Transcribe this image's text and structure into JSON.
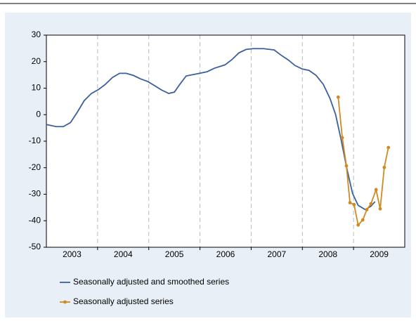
{
  "chart_data": {
    "type": "line",
    "categories": [
      "2003",
      "2004",
      "2005",
      "2006",
      "2007",
      "2008",
      "2009"
    ],
    "xlim": [
      2003,
      2010
    ],
    "ylim": [
      -50,
      30
    ],
    "yticks": [
      -50,
      -40,
      -30,
      -20,
      -10,
      0,
      10,
      20,
      30
    ],
    "legend": "bottom",
    "series": [
      {
        "name": "Seasonally adjusted and smoothed series",
        "color": "#3b5f9e",
        "markers": false,
        "x": [
          2003.0,
          2003.19,
          2003.33,
          2003.47,
          2003.6,
          2003.74,
          2003.88,
          2004.02,
          2004.15,
          2004.29,
          2004.43,
          2004.56,
          2004.7,
          2004.84,
          2004.98,
          2005.11,
          2005.25,
          2005.39,
          2005.5,
          2005.59,
          2005.73,
          2005.94,
          2006.14,
          2006.28,
          2006.49,
          2006.62,
          2006.76,
          2006.9,
          2007.04,
          2007.24,
          2007.45,
          2007.58,
          2007.72,
          2007.86,
          2008.0,
          2008.13,
          2008.27,
          2008.41,
          2008.54,
          2008.65,
          2008.76,
          2008.87,
          2008.98,
          2009.09,
          2009.23,
          2009.34,
          2009.42
        ],
        "values": [
          -3.7,
          -4.5,
          -4.5,
          -3,
          0.8,
          5.3,
          8,
          9.5,
          11.4,
          14,
          15.6,
          15.6,
          14.8,
          13.5,
          12.5,
          11,
          9.3,
          8,
          8.5,
          11,
          14.6,
          15.4,
          16.2,
          17.5,
          18.8,
          20.7,
          23.3,
          24.6,
          24.9,
          24.9,
          24.4,
          22.5,
          20.7,
          18.5,
          17.2,
          16.7,
          14.8,
          11.4,
          6.1,
          0,
          -9.8,
          -20.4,
          -29.7,
          -34.2,
          -35.8,
          -34.5,
          -32.8
        ]
      },
      {
        "name": "Seasonally adjusted series",
        "color": "#d08a22",
        "markers": true,
        "x": [
          2008.7,
          2008.78,
          2008.86,
          2008.93,
          2009.01,
          2009.09,
          2009.18,
          2009.26,
          2009.34,
          2009.44,
          2009.52,
          2009.6,
          2009.68
        ],
        "values": [
          6.6,
          -8.7,
          -19.3,
          -33.2,
          -33.9,
          -41.6,
          -39.7,
          -35.8,
          -33.6,
          -28.3,
          -35.5,
          -19.9,
          -12.4
        ]
      }
    ]
  }
}
